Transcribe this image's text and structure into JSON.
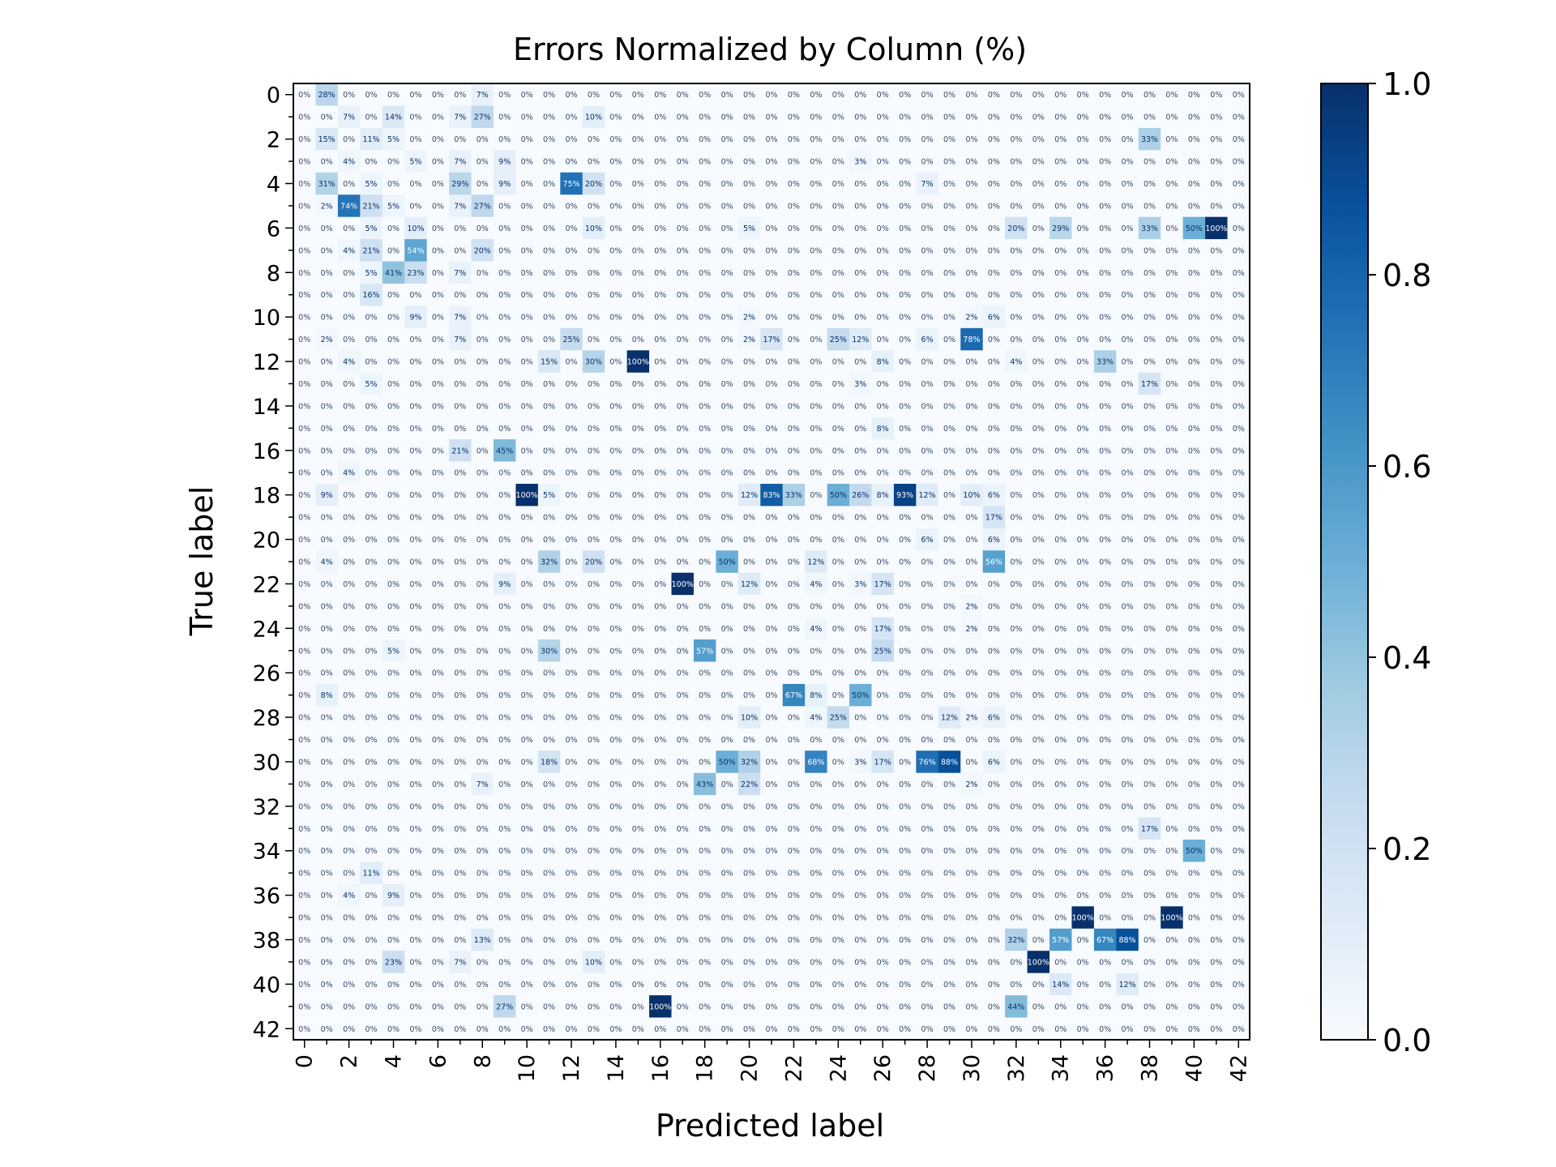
{
  "chart_data": {
    "type": "heatmap",
    "title": "Errors Normalized by Column (%)",
    "xlabel": "Predicted label",
    "ylabel": "True label",
    "n_classes": 43,
    "tick_step": 2,
    "cell_format": "percent",
    "colormap": "Blues",
    "colormap_stops": [
      "#f7fbff",
      "#deebf7",
      "#c6dbef",
      "#9ecae1",
      "#6baed6",
      "#4292c6",
      "#2171b5",
      "#08519c",
      "#08306b"
    ],
    "colorbar": {
      "min": 0.0,
      "max": 1.0,
      "ticks": [
        "0.0",
        "0.2",
        "0.4",
        "0.6",
        "0.8",
        "1.0"
      ]
    },
    "nonzero_cells": [
      [
        0,
        1,
        0.28
      ],
      [
        0,
        8,
        0.07
      ],
      [
        1,
        2,
        0.07
      ],
      [
        1,
        4,
        0.14
      ],
      [
        1,
        7,
        0.07
      ],
      [
        1,
        8,
        0.27
      ],
      [
        1,
        13,
        0.1
      ],
      [
        2,
        1,
        0.15
      ],
      [
        2,
        3,
        0.11
      ],
      [
        2,
        4,
        0.05
      ],
      [
        2,
        38,
        0.33
      ],
      [
        3,
        2,
        0.04
      ],
      [
        3,
        5,
        0.05
      ],
      [
        3,
        7,
        0.07
      ],
      [
        3,
        9,
        0.09
      ],
      [
        3,
        25,
        0.03
      ],
      [
        4,
        1,
        0.31
      ],
      [
        4,
        3,
        0.05
      ],
      [
        4,
        7,
        0.29
      ],
      [
        4,
        9,
        0.09
      ],
      [
        4,
        12,
        0.75
      ],
      [
        4,
        13,
        0.2
      ],
      [
        4,
        28,
        0.07
      ],
      [
        5,
        1,
        0.02
      ],
      [
        5,
        2,
        0.74
      ],
      [
        5,
        3,
        0.21
      ],
      [
        5,
        4,
        0.05
      ],
      [
        5,
        7,
        0.07
      ],
      [
        5,
        8,
        0.27
      ],
      [
        6,
        3,
        0.05
      ],
      [
        6,
        5,
        0.1
      ],
      [
        6,
        13,
        0.1
      ],
      [
        6,
        20,
        0.05
      ],
      [
        6,
        32,
        0.2
      ],
      [
        6,
        34,
        0.29
      ],
      [
        6,
        38,
        0.33
      ],
      [
        6,
        40,
        0.5
      ],
      [
        6,
        41,
        1.0
      ],
      [
        7,
        2,
        0.04
      ],
      [
        7,
        3,
        0.21
      ],
      [
        7,
        5,
        0.54
      ],
      [
        7,
        8,
        0.2
      ],
      [
        8,
        3,
        0.05
      ],
      [
        8,
        4,
        0.41
      ],
      [
        8,
        5,
        0.23
      ],
      [
        8,
        7,
        0.07
      ],
      [
        9,
        3,
        0.16
      ],
      [
        10,
        5,
        0.09
      ],
      [
        10,
        7,
        0.07
      ],
      [
        10,
        20,
        0.02
      ],
      [
        10,
        30,
        0.02
      ],
      [
        10,
        31,
        0.06
      ],
      [
        11,
        1,
        0.02
      ],
      [
        11,
        7,
        0.07
      ],
      [
        11,
        12,
        0.25
      ],
      [
        11,
        20,
        0.02
      ],
      [
        11,
        21,
        0.17
      ],
      [
        11,
        24,
        0.25
      ],
      [
        11,
        25,
        0.12
      ],
      [
        11,
        28,
        0.06
      ],
      [
        11,
        30,
        0.78
      ],
      [
        12,
        2,
        0.04
      ],
      [
        12,
        11,
        0.15
      ],
      [
        12,
        13,
        0.3
      ],
      [
        12,
        15,
        1.0
      ],
      [
        12,
        26,
        0.08
      ],
      [
        12,
        32,
        0.04
      ],
      [
        12,
        36,
        0.33
      ],
      [
        13,
        3,
        0.05
      ],
      [
        13,
        25,
        0.03
      ],
      [
        13,
        38,
        0.17
      ],
      [
        15,
        26,
        0.08
      ],
      [
        16,
        7,
        0.21
      ],
      [
        16,
        9,
        0.45
      ],
      [
        17,
        2,
        0.04
      ],
      [
        18,
        1,
        0.09
      ],
      [
        18,
        10,
        1.0
      ],
      [
        18,
        11,
        0.05
      ],
      [
        18,
        20,
        0.12
      ],
      [
        18,
        21,
        0.83
      ],
      [
        18,
        22,
        0.33
      ],
      [
        18,
        24,
        0.5
      ],
      [
        18,
        25,
        0.26
      ],
      [
        18,
        26,
        0.08
      ],
      [
        18,
        27,
        0.93
      ],
      [
        18,
        28,
        0.12
      ],
      [
        18,
        30,
        0.1
      ],
      [
        18,
        31,
        0.06
      ],
      [
        19,
        31,
        0.17
      ],
      [
        20,
        28,
        0.06
      ],
      [
        20,
        31,
        0.06
      ],
      [
        21,
        1,
        0.04
      ],
      [
        21,
        11,
        0.32
      ],
      [
        21,
        13,
        0.2
      ],
      [
        21,
        19,
        0.5
      ],
      [
        21,
        23,
        0.12
      ],
      [
        21,
        31,
        0.56
      ],
      [
        22,
        9,
        0.09
      ],
      [
        22,
        17,
        1.0
      ],
      [
        22,
        20,
        0.12
      ],
      [
        22,
        23,
        0.04
      ],
      [
        22,
        25,
        0.03
      ],
      [
        22,
        26,
        0.17
      ],
      [
        23,
        30,
        0.02
      ],
      [
        24,
        23,
        0.04
      ],
      [
        24,
        26,
        0.17
      ],
      [
        24,
        30,
        0.02
      ],
      [
        25,
        4,
        0.05
      ],
      [
        25,
        11,
        0.3
      ],
      [
        25,
        18,
        0.57
      ],
      [
        25,
        26,
        0.25
      ],
      [
        27,
        1,
        0.08
      ],
      [
        27,
        22,
        0.67
      ],
      [
        27,
        23,
        0.08
      ],
      [
        27,
        25,
        0.5
      ],
      [
        28,
        20,
        0.1
      ],
      [
        28,
        23,
        0.04
      ],
      [
        28,
        24,
        0.25
      ],
      [
        28,
        29,
        0.12
      ],
      [
        28,
        30,
        0.02
      ],
      [
        28,
        31,
        0.06
      ],
      [
        30,
        11,
        0.18
      ],
      [
        30,
        19,
        0.5
      ],
      [
        30,
        20,
        0.32
      ],
      [
        30,
        23,
        0.68
      ],
      [
        30,
        25,
        0.03
      ],
      [
        30,
        26,
        0.17
      ],
      [
        30,
        28,
        0.76
      ],
      [
        30,
        29,
        0.88
      ],
      [
        30,
        31,
        0.06
      ],
      [
        31,
        8,
        0.07
      ],
      [
        31,
        18,
        0.43
      ],
      [
        31,
        20,
        0.22
      ],
      [
        31,
        30,
        0.02
      ],
      [
        33,
        38,
        0.17
      ],
      [
        34,
        40,
        0.5
      ],
      [
        35,
        3,
        0.11
      ],
      [
        36,
        2,
        0.04
      ],
      [
        36,
        4,
        0.09
      ],
      [
        37,
        35,
        1.0
      ],
      [
        37,
        39,
        1.0
      ],
      [
        38,
        8,
        0.13
      ],
      [
        38,
        32,
        0.32
      ],
      [
        38,
        34,
        0.57
      ],
      [
        38,
        36,
        0.67
      ],
      [
        38,
        37,
        0.88
      ],
      [
        39,
        4,
        0.23
      ],
      [
        39,
        7,
        0.07
      ],
      [
        39,
        13,
        0.1
      ],
      [
        39,
        33,
        1.0
      ],
      [
        40,
        34,
        0.14
      ],
      [
        40,
        37,
        0.12
      ],
      [
        41,
        9,
        0.27
      ],
      [
        41,
        16,
        1.0
      ],
      [
        41,
        32,
        0.44
      ]
    ]
  }
}
